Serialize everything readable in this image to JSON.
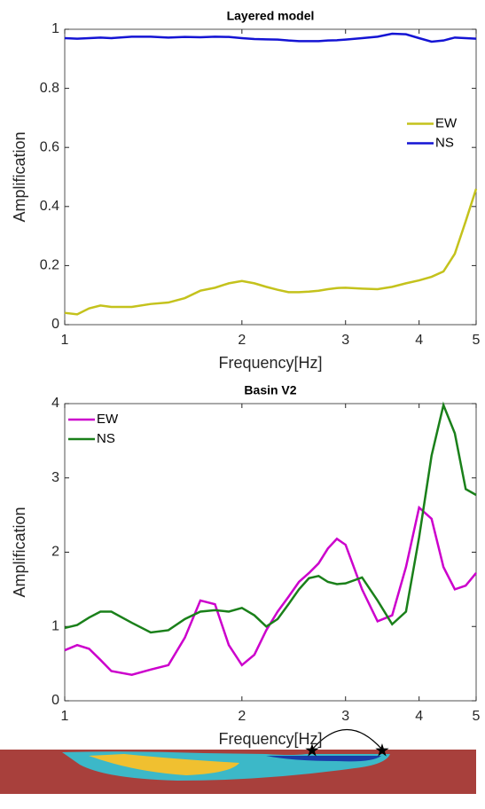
{
  "chart_data": [
    {
      "type": "line",
      "title": "Layered model",
      "xlabel": "Frequency[Hz]",
      "ylabel": "Amplification",
      "x": [
        1,
        1.05,
        1.1,
        1.15,
        1.2,
        1.3,
        1.4,
        1.5,
        1.6,
        1.7,
        1.8,
        1.9,
        2.0,
        2.1,
        2.2,
        2.3,
        2.4,
        2.5,
        2.6,
        2.7,
        2.8,
        2.9,
        3.0,
        3.2,
        3.4,
        3.6,
        3.8,
        4.0,
        4.2,
        4.4,
        4.6,
        4.8,
        5.0
      ],
      "series": [
        {
          "name": "EW",
          "color": "#c4c21c",
          "values": [
            0.04,
            0.035,
            0.055,
            0.065,
            0.06,
            0.06,
            0.07,
            0.075,
            0.09,
            0.115,
            0.125,
            0.14,
            0.148,
            0.14,
            0.128,
            0.118,
            0.11,
            0.11,
            0.112,
            0.115,
            0.12,
            0.124,
            0.125,
            0.122,
            0.12,
            0.128,
            0.14,
            0.15,
            0.162,
            0.18,
            0.24,
            0.35,
            0.46
          ]
        },
        {
          "name": "NS",
          "color": "#1414d4",
          "values": [
            0.97,
            0.968,
            0.97,
            0.972,
            0.97,
            0.975,
            0.975,
            0.972,
            0.974,
            0.973,
            0.975,
            0.974,
            0.97,
            0.967,
            0.966,
            0.965,
            0.962,
            0.96,
            0.96,
            0.96,
            0.962,
            0.963,
            0.965,
            0.97,
            0.975,
            0.985,
            0.983,
            0.97,
            0.958,
            0.962,
            0.972,
            0.97,
            0.968
          ]
        }
      ],
      "xlim": [
        1,
        5
      ],
      "xticks": [
        1,
        2,
        3,
        4,
        5
      ],
      "xscale": "log",
      "ylim": [
        0,
        1
      ],
      "yticks": [
        0,
        0.2,
        0.4,
        0.6,
        0.8,
        1
      ],
      "legend": "east"
    },
    {
      "type": "line",
      "title": "Basin V2",
      "xlabel": "Frequency[Hz]",
      "ylabel": "Amplification",
      "x": [
        1,
        1.05,
        1.1,
        1.15,
        1.2,
        1.3,
        1.4,
        1.5,
        1.6,
        1.7,
        1.8,
        1.9,
        2.0,
        2.1,
        2.2,
        2.3,
        2.4,
        2.5,
        2.6,
        2.7,
        2.8,
        2.9,
        3.0,
        3.2,
        3.4,
        3.6,
        3.8,
        4.0,
        4.2,
        4.4,
        4.6,
        4.8,
        5.0
      ],
      "series": [
        {
          "name": "EW",
          "color": "#cc00cc",
          "values": [
            0.68,
            0.75,
            0.7,
            0.55,
            0.4,
            0.35,
            0.42,
            0.48,
            0.85,
            1.35,
            1.3,
            0.75,
            0.48,
            0.62,
            0.95,
            1.2,
            1.4,
            1.6,
            1.72,
            1.85,
            2.05,
            2.18,
            2.1,
            1.5,
            1.07,
            1.15,
            1.8,
            2.6,
            2.45,
            1.8,
            1.5,
            1.55,
            1.72
          ]
        },
        {
          "name": "NS",
          "color": "#1a801a",
          "values": [
            0.98,
            1.02,
            1.12,
            1.2,
            1.2,
            1.05,
            0.92,
            0.95,
            1.1,
            1.2,
            1.22,
            1.2,
            1.25,
            1.15,
            1.0,
            1.1,
            1.3,
            1.5,
            1.65,
            1.68,
            1.6,
            1.57,
            1.58,
            1.66,
            1.35,
            1.03,
            1.2,
            2.2,
            3.3,
            3.98,
            3.6,
            2.85,
            2.77
          ]
        }
      ],
      "xlim": [
        1,
        5
      ],
      "xticks": [
        1,
        2,
        3,
        4,
        5
      ],
      "xscale": "log",
      "ylim": [
        0,
        4
      ],
      "yticks": [
        0,
        1,
        2,
        3,
        4
      ],
      "legend": "northwest"
    }
  ]
}
